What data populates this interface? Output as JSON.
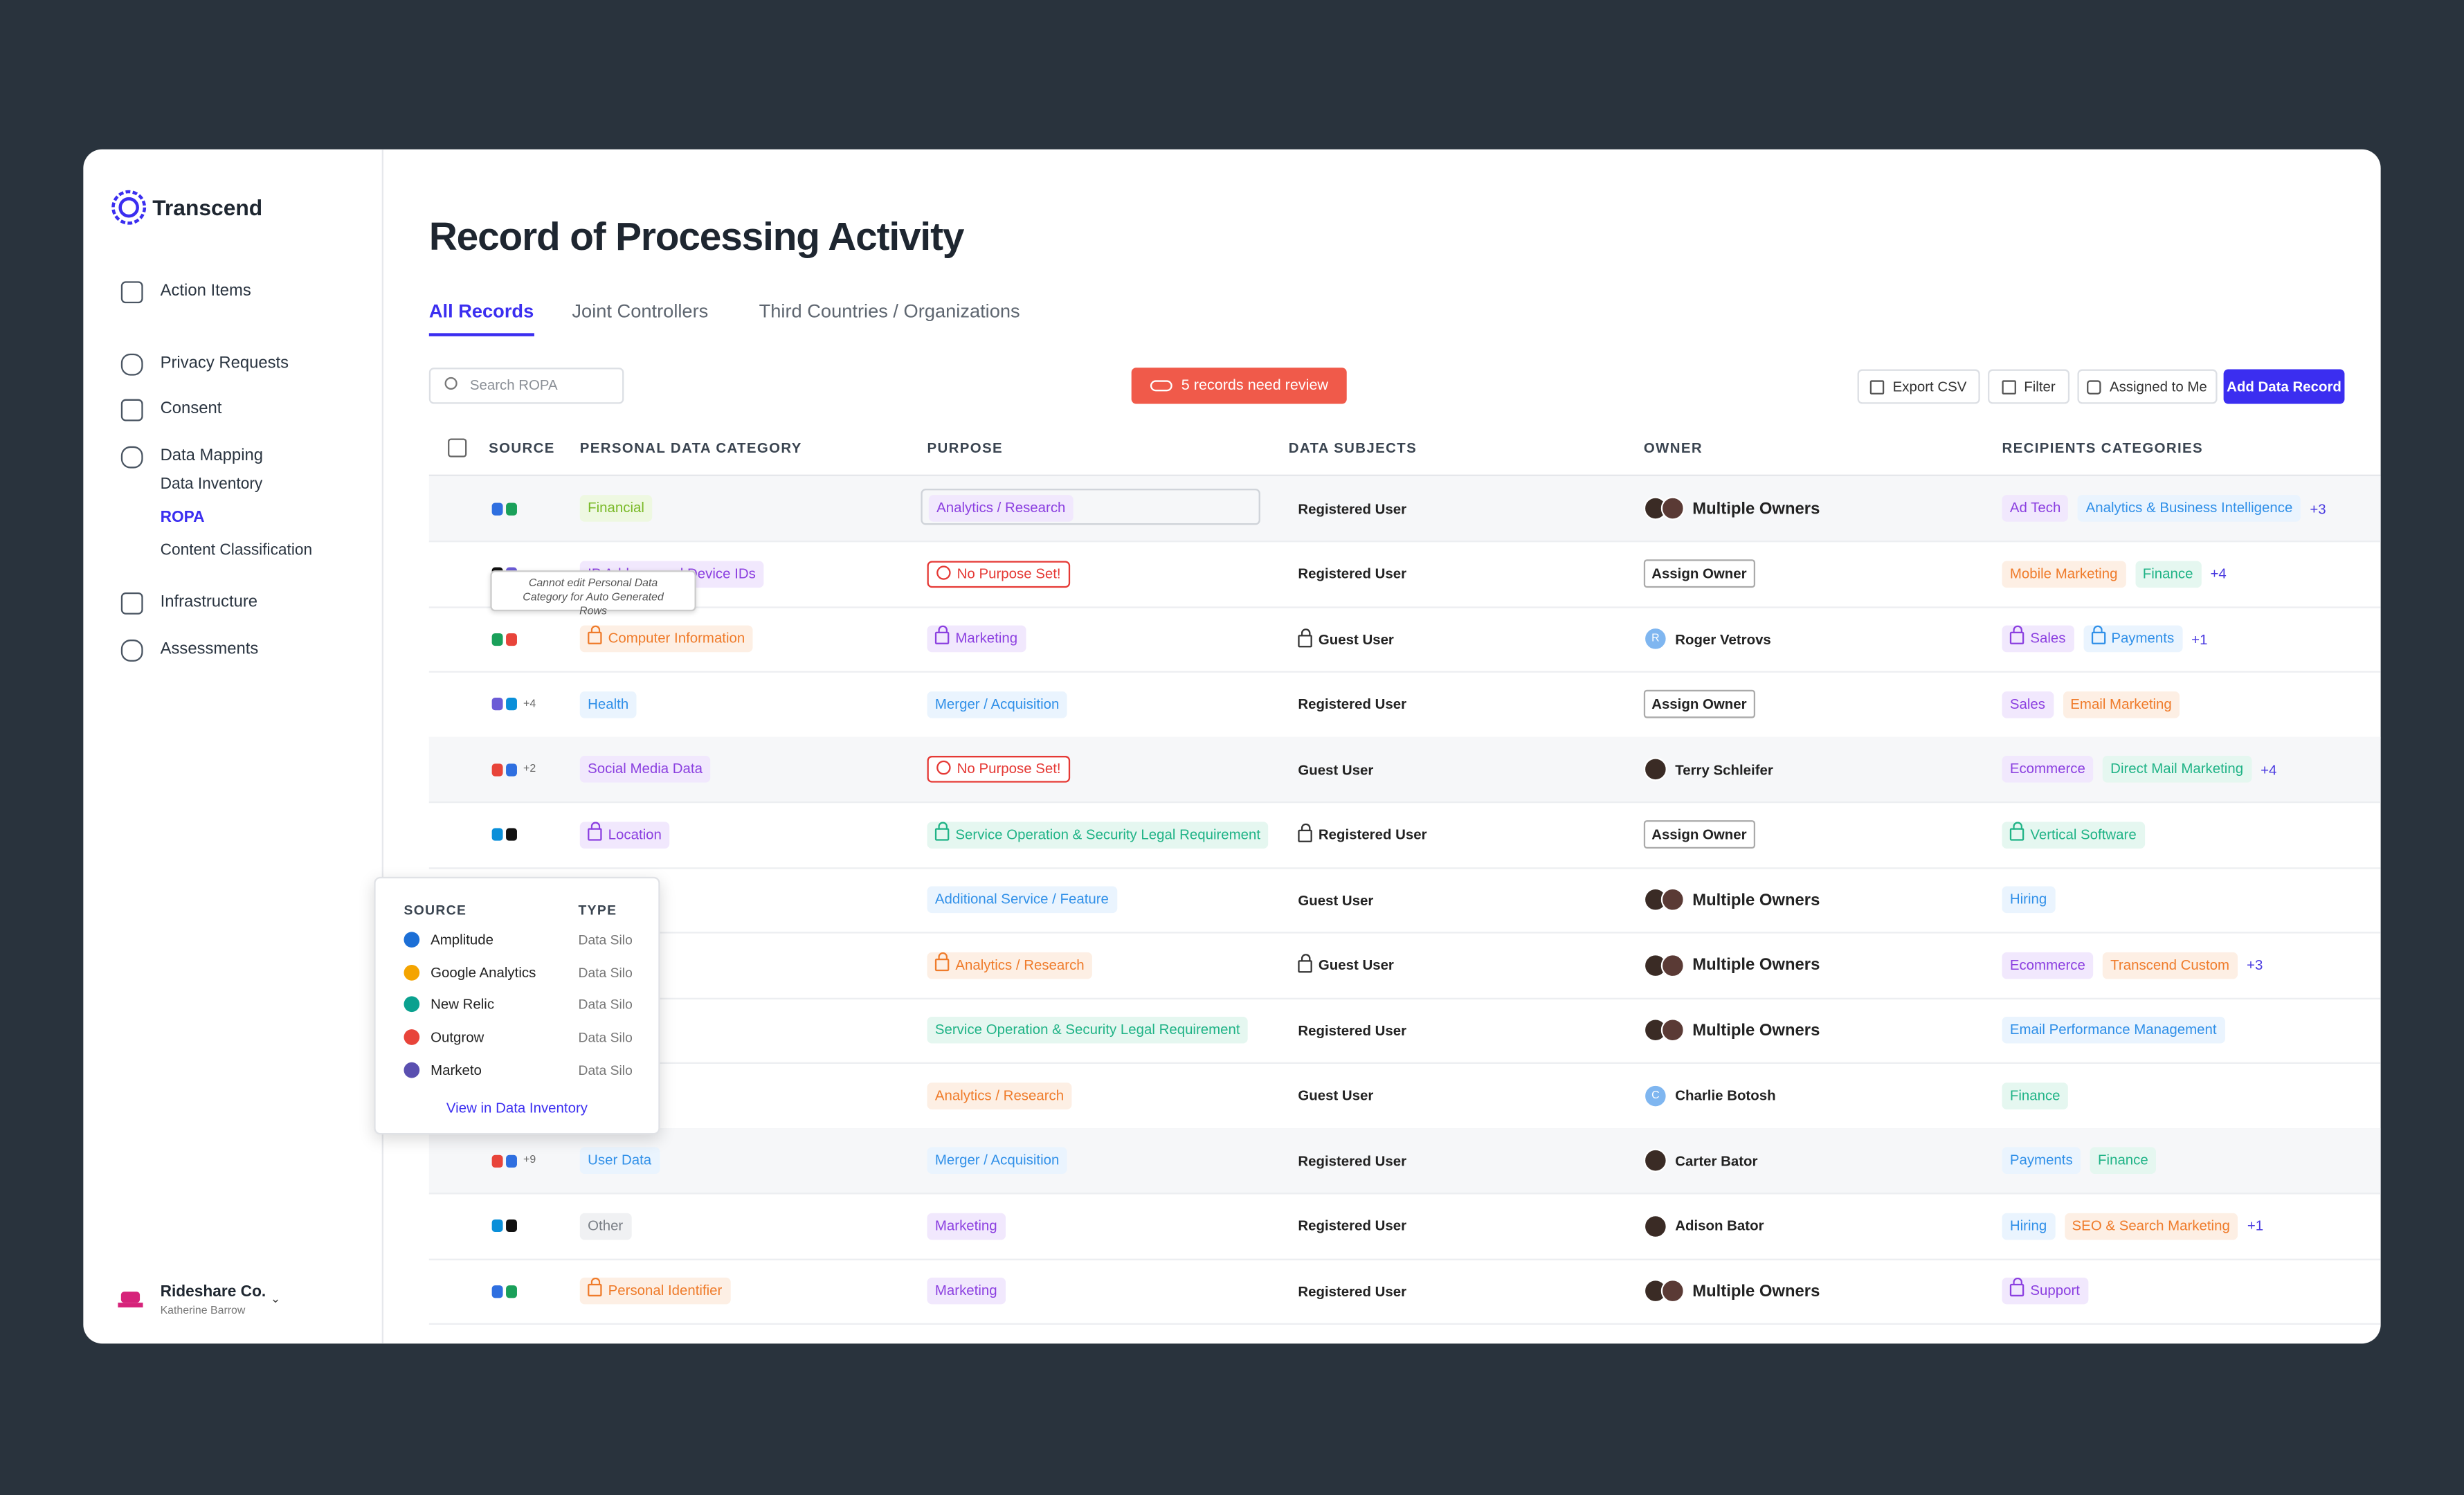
{
  "brand": "Transcend",
  "nav": [
    {
      "label": "Action Items",
      "y": 0
    },
    {
      "label": "Privacy Requests"
    },
    {
      "label": "Consent"
    },
    {
      "label": "Data Mapping",
      "children": [
        "Data Inventory",
        "ROPA",
        "Content Classification"
      ],
      "active_child": 1
    },
    {
      "label": "Infrastructure"
    },
    {
      "label": "Assessments"
    }
  ],
  "org": {
    "name": "Rideshare Co.",
    "user": "Katherine Barrow"
  },
  "title": "Record of Processing Activity",
  "tabs": [
    "All Records",
    "Joint Controllers",
    "Third Countries / Organizations"
  ],
  "active_tab": 0,
  "search_placeholder": "Search ROPA",
  "review_banner": "5 records need review",
  "buttons": [
    "Export CSV",
    "Filter",
    "Assigned to Me",
    "Add Data Record"
  ],
  "table": {
    "headers": [
      "SOURCE",
      "PERSONAL DATA CATEGORY",
      "PURPOSE",
      "DATA SUBJECTS",
      "OWNER",
      "RECIPIENTS CATEGORIES"
    ],
    "rows": [
      {
        "shaded": true,
        "category": {
          "text": "Financial",
          "tone": "lime"
        },
        "purpose": {
          "text": "Analytics / Research",
          "tone": "purple",
          "selected": true
        },
        "subjects": {
          "text": "Registered User"
        },
        "owner": {
          "text": "Multiple Owners",
          "kind": "multiple"
        },
        "recipients": [
          {
            "text": "Ad Tech",
            "tone": "purple"
          },
          {
            "text": "Analytics & Business Intelligence",
            "tone": "blue"
          }
        ],
        "more": "+3"
      },
      {
        "category": {
          "text": "IP Address and Device IDs",
          "tone": "purple"
        },
        "purpose": {
          "text": "No Purpose Set!",
          "tone": "red"
        },
        "subjects": {
          "text": "Registered User"
        },
        "owner": {
          "text": "Assign Owner",
          "kind": "assign"
        },
        "recipients": [
          {
            "text": "Mobile Marketing",
            "tone": "orange"
          },
          {
            "text": "Finance",
            "tone": "teal"
          }
        ],
        "more": "+4"
      },
      {
        "category": {
          "text": "Computer Information",
          "tone": "orange",
          "locked": true
        },
        "purpose": {
          "text": "Marketing",
          "tone": "purple",
          "locked": true
        },
        "subjects": {
          "text": "Guest User",
          "locked": true
        },
        "owner": {
          "text": "Roger Vetrovs",
          "kind": "person",
          "initial": "R"
        },
        "recipients": [
          {
            "text": "Sales",
            "tone": "purple",
            "locked": true
          },
          {
            "text": "Payments",
            "tone": "blue",
            "locked": true
          }
        ],
        "more": "+1"
      },
      {
        "source_more": "+4",
        "category": {
          "text": "Health",
          "tone": "blue"
        },
        "purpose": {
          "text": "Merger / Acquisition",
          "tone": "blue"
        },
        "subjects": {
          "text": "Registered User"
        },
        "owner": {
          "text": "Assign Owner",
          "kind": "assign"
        },
        "recipients": [
          {
            "text": "Sales",
            "tone": "purple"
          },
          {
            "text": "Email Marketing",
            "tone": "orange"
          }
        ]
      },
      {
        "shaded": true,
        "source_more": "+2",
        "category": {
          "text": "Social Media Data",
          "tone": "purple"
        },
        "purpose": {
          "text": "No Purpose Set!",
          "tone": "red"
        },
        "subjects": {
          "text": "Guest User"
        },
        "owner": {
          "text": "Terry Schleifer",
          "kind": "person"
        },
        "recipients": [
          {
            "text": "Ecommerce",
            "tone": "purple"
          },
          {
            "text": "Direct Mail Marketing",
            "tone": "teal"
          }
        ],
        "more": "+4"
      },
      {
        "category": {
          "text": "Location",
          "tone": "purple",
          "locked": true
        },
        "purpose": {
          "text": "Service Operation & Security Legal Requirement",
          "tone": "teal",
          "locked": true
        },
        "subjects": {
          "text": "Registered User",
          "locked": true
        },
        "owner": {
          "text": "Assign Owner",
          "kind": "assign"
        },
        "recipients": [
          {
            "text": "Vertical Software",
            "tone": "teal",
            "locked": true
          }
        ]
      },
      {
        "purpose": {
          "text": "Additional Service / Feature",
          "tone": "blue"
        },
        "subjects": {
          "text": "Guest User"
        },
        "owner": {
          "text": "Multiple Owners",
          "kind": "multiple"
        },
        "recipients": [
          {
            "text": "Hiring",
            "tone": "blue"
          }
        ]
      },
      {
        "purpose": {
          "text": "Analytics / Research",
          "tone": "orange",
          "locked": true
        },
        "subjects": {
          "text": "Guest User",
          "locked": true
        },
        "owner": {
          "text": "Multiple Owners",
          "kind": "multiple"
        },
        "recipients": [
          {
            "text": "Ecommerce",
            "tone": "purple"
          },
          {
            "text": "Transcend Custom",
            "tone": "orange"
          }
        ],
        "more": "+3"
      },
      {
        "purpose": {
          "text": "Service Operation & Security Legal Requirement",
          "tone": "teal"
        },
        "subjects": {
          "text": "Registered User"
        },
        "owner": {
          "text": "Multiple Owners",
          "kind": "multiple"
        },
        "recipients": [
          {
            "text": "Email Performance Management",
            "tone": "blue"
          }
        ]
      },
      {
        "purpose": {
          "text": "Analytics / Research",
          "tone": "orange"
        },
        "subjects": {
          "text": "Guest User"
        },
        "owner": {
          "text": "Charlie Botosh",
          "kind": "person",
          "initial": "C"
        },
        "recipients": [
          {
            "text": "Finance",
            "tone": "teal"
          }
        ]
      },
      {
        "shaded": true,
        "source_more": "+9",
        "category": {
          "text": "User Data",
          "tone": "blue"
        },
        "purpose": {
          "text": "Merger / Acquisition",
          "tone": "blue"
        },
        "subjects": {
          "text": "Registered User"
        },
        "owner": {
          "text": "Carter Bator",
          "kind": "person"
        },
        "recipients": [
          {
            "text": "Payments",
            "tone": "blue"
          },
          {
            "text": "Finance",
            "tone": "teal"
          }
        ]
      },
      {
        "category": {
          "text": "Other",
          "tone": "gray"
        },
        "purpose": {
          "text": "Marketing",
          "tone": "purple"
        },
        "subjects": {
          "text": "Registered User"
        },
        "owner": {
          "text": "Adison Bator",
          "kind": "person"
        },
        "recipients": [
          {
            "text": "Hiring",
            "tone": "blue"
          },
          {
            "text": "SEO & Search Marketing",
            "tone": "orange"
          }
        ],
        "more": "+1"
      },
      {
        "category": {
          "text": "Personal Identifier",
          "tone": "orange",
          "locked": true
        },
        "purpose": {
          "text": "Marketing",
          "tone": "purple"
        },
        "subjects": {
          "text": "Registered User"
        },
        "owner": {
          "text": "Multiple Owners",
          "kind": "multiple"
        },
        "recipients": [
          {
            "text": "Support",
            "tone": "purple",
            "locked": true
          }
        ]
      }
    ]
  },
  "tooltip": "Cannot edit Personal Data Category for Auto Generated Rows",
  "popover": {
    "headers": [
      "SOURCE",
      "TYPE"
    ],
    "rows": [
      {
        "name": "Amplitude",
        "type": "Data Silo",
        "color": "#1c6fd6"
      },
      {
        "name": "Google Analytics",
        "type": "Data Silo",
        "color": "#f4a400"
      },
      {
        "name": "New Relic",
        "type": "Data Silo",
        "color": "#0aa18f"
      },
      {
        "name": "Outgrow",
        "type": "Data Silo",
        "color": "#e8443a"
      },
      {
        "name": "Marketo",
        "type": "Data Silo",
        "color": "#5a4fb0"
      }
    ],
    "link": "View in Data Inventory"
  }
}
